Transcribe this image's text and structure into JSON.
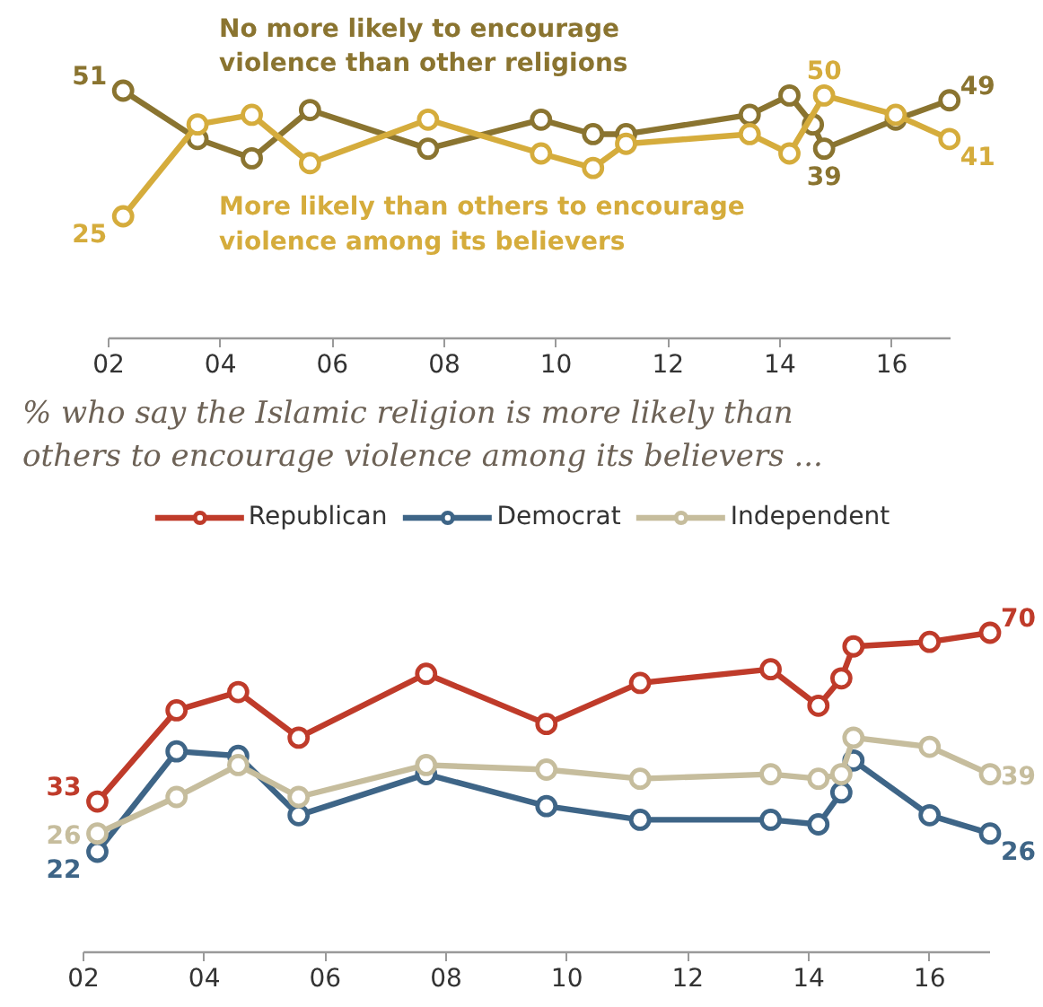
{
  "chart_data": [
    {
      "type": "line",
      "x": [
        2.26,
        3.59,
        4.56,
        5.6,
        7.71,
        9.73,
        10.66,
        11.25,
        13.46,
        14.17,
        14.59,
        14.79,
        16.07,
        17.03
      ],
      "xlim": [
        2,
        17.05
      ],
      "xticks": [
        {
          "value": 2,
          "label": "02"
        },
        {
          "value": 4,
          "label": "04"
        },
        {
          "value": 6,
          "label": "06"
        },
        {
          "value": 8,
          "label": "08"
        },
        {
          "value": 10,
          "label": "10"
        },
        {
          "value": 12,
          "label": "12"
        },
        {
          "value": 14,
          "label": "14"
        },
        {
          "value": 16,
          "label": "16"
        }
      ],
      "tick_labels": "x",
      "grid": false,
      "marker": "circle",
      "legend": false,
      "series": [
        {
          "name": "No more likely to encourage violence than other religions",
          "color": "#8a7430",
          "values": [
            51,
            41,
            37,
            47,
            39,
            45,
            42,
            42,
            46,
            50,
            44,
            39,
            45,
            49
          ],
          "value_labels": [
            "51",
            null,
            null,
            null,
            null,
            null,
            null,
            null,
            null,
            null,
            null,
            "39",
            null,
            "49"
          ]
        },
        {
          "name": "More likely than others to encourage violence among its believers",
          "color": "#d5ac3c",
          "x": [
            2.26,
            3.59,
            4.56,
            5.6,
            7.71,
            9.73,
            10.66,
            11.25,
            13.46,
            14.17,
            14.79,
            16.07,
            17.03
          ],
          "values": [
            25,
            44,
            46,
            36,
            45,
            38,
            35,
            40,
            42,
            38,
            50,
            46,
            41
          ],
          "value_labels": [
            "25",
            null,
            null,
            null,
            null,
            null,
            null,
            null,
            null,
            null,
            "50",
            null,
            "41"
          ]
        }
      ]
    },
    {
      "type": "line",
      "title": "% who say the Islamic religion is more likely than others to encourage violence among its believers ...",
      "x": [
        2.23,
        3.54,
        4.56,
        5.56,
        7.67,
        9.66,
        11.21,
        13.37,
        14.16,
        14.54,
        14.74,
        16.0,
        17.0
      ],
      "xlim": [
        2,
        17.0
      ],
      "xticks": [
        {
          "value": 2,
          "label": "02"
        },
        {
          "value": 4,
          "label": "04"
        },
        {
          "value": 6,
          "label": "06"
        },
        {
          "value": 8,
          "label": "08"
        },
        {
          "value": 10,
          "label": "10"
        },
        {
          "value": 12,
          "label": "12"
        },
        {
          "value": 14,
          "label": "14"
        },
        {
          "value": 16,
          "label": "16"
        }
      ],
      "tick_labels": "x",
      "grid": false,
      "marker": "circle",
      "legend": "top",
      "series": [
        {
          "name": "Republican",
          "color": "#bf3b2a",
          "values": [
            33,
            53,
            57,
            47,
            61,
            50,
            59,
            62,
            54,
            60,
            67,
            68,
            70
          ],
          "value_labels": [
            "33",
            null,
            null,
            null,
            null,
            null,
            null,
            null,
            null,
            null,
            null,
            null,
            "70"
          ]
        },
        {
          "name": "Democrat",
          "color": "#3e6587",
          "values": [
            22,
            44,
            43,
            30,
            39,
            32,
            29,
            29,
            28,
            35,
            42,
            30,
            26
          ],
          "value_labels": [
            "22",
            null,
            null,
            null,
            null,
            null,
            null,
            null,
            null,
            null,
            null,
            null,
            "26"
          ]
        },
        {
          "name": "Independent",
          "color": "#c6bd9d",
          "values": [
            26,
            34,
            41,
            34,
            41,
            40,
            38,
            39,
            38,
            39,
            47,
            45,
            39
          ],
          "value_labels": [
            "26",
            null,
            null,
            null,
            null,
            null,
            null,
            null,
            null,
            null,
            null,
            null,
            "39"
          ]
        }
      ]
    }
  ]
}
